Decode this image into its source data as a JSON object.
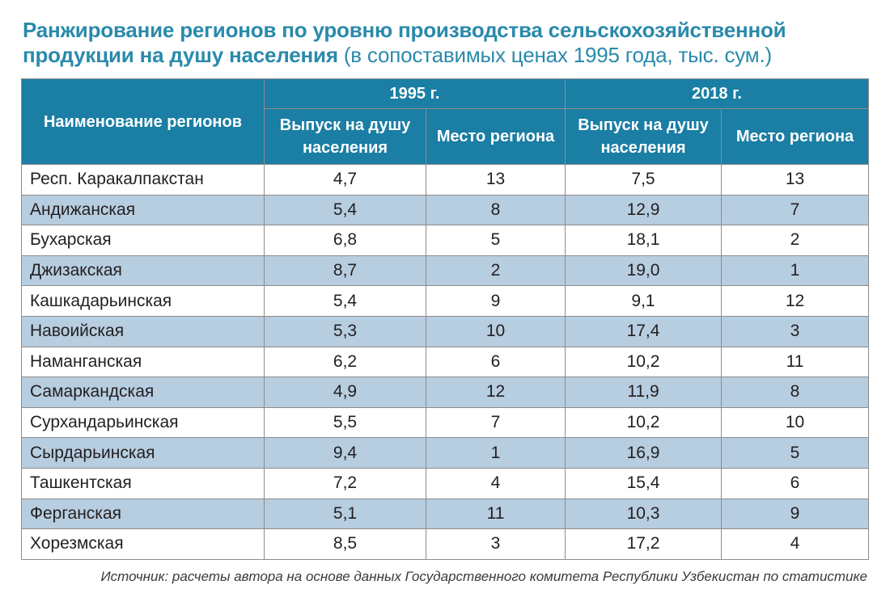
{
  "title": {
    "main": "Ранжирование регионов по уровню производства сельскохозяйственной продукции на душу населения",
    "sub": "(в сопоставимых ценах 1995 года, тыс. сум.)"
  },
  "table": {
    "region_header": "Наименование регионов",
    "year1": "1995 г.",
    "year2": "2018 г.",
    "col_output": "Выпуск на душу населения",
    "col_rank": "Место региона",
    "rows": [
      {
        "region": "Респ. Каракалпакстан",
        "out1995": "4,7",
        "rank1995": "13",
        "out2018": "7,5",
        "rank2018": "13"
      },
      {
        "region": "Андижанская",
        "out1995": "5,4",
        "rank1995": "8",
        "out2018": "12,9",
        "rank2018": "7"
      },
      {
        "region": "Бухарская",
        "out1995": "6,8",
        "rank1995": "5",
        "out2018": "18,1",
        "rank2018": "2"
      },
      {
        "region": "Джизакская",
        "out1995": "8,7",
        "rank1995": "2",
        "out2018": "19,0",
        "rank2018": "1"
      },
      {
        "region": "Кашкадарьинская",
        "out1995": "5,4",
        "rank1995": "9",
        "out2018": "9,1",
        "rank2018": "12"
      },
      {
        "region": "Навоийская",
        "out1995": "5,3",
        "rank1995": "10",
        "out2018": "17,4",
        "rank2018": "3"
      },
      {
        "region": "Наманганская",
        "out1995": "6,2",
        "rank1995": "6",
        "out2018": "10,2",
        "rank2018": "11"
      },
      {
        "region": "Самаркандская",
        "out1995": "4,9",
        "rank1995": "12",
        "out2018": "11,9",
        "rank2018": "8"
      },
      {
        "region": "Сурхандарьинская",
        "out1995": "5,5",
        "rank1995": "7",
        "out2018": "10,2",
        "rank2018": "10"
      },
      {
        "region": "Сырдарьинская",
        "out1995": "9,4",
        "rank1995": "1",
        "out2018": "16,9",
        "rank2018": "5"
      },
      {
        "region": "Ташкентская",
        "out1995": "7,2",
        "rank1995": "4",
        "out2018": "15,4",
        "rank2018": "6"
      },
      {
        "region": "Ферганская",
        "out1995": "5,1",
        "rank1995": "11",
        "out2018": "10,3",
        "rank2018": "9"
      },
      {
        "region": "Хорезмская",
        "out1995": "8,5",
        "rank1995": "3",
        "out2018": "17,2",
        "rank2018": "4"
      }
    ]
  },
  "source": "Источник: расчеты автора на основе данных Государственного комитета Республики Узбекистан по статистике",
  "colors": {
    "title": "#2a8aab",
    "header_bg": "#1b7ea4",
    "row_alt_bg": "#b7cde0"
  }
}
